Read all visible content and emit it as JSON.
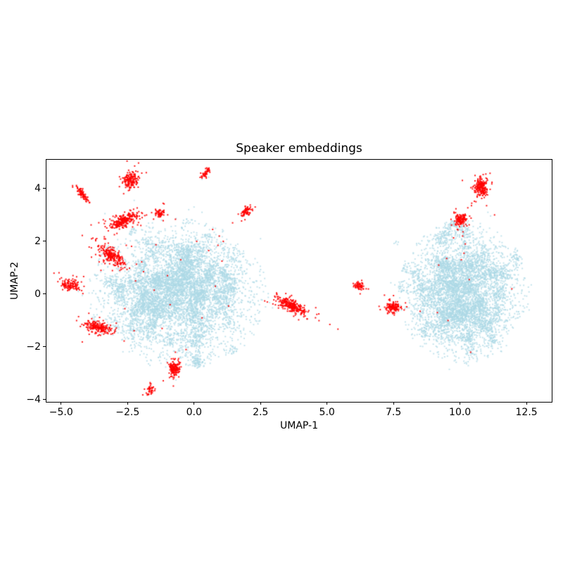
{
  "title": "Speaker embeddings",
  "axes": {
    "xlabel": "UMAP-1",
    "ylabel": "UMAP-2",
    "xlim": [
      -5.55,
      13.45
    ],
    "ylim": [
      -4.08,
      5.09
    ],
    "xticks": [
      -5.0,
      -2.5,
      0.0,
      2.5,
      5.0,
      7.5,
      10.0,
      12.5
    ],
    "xtick_labels": [
      "−5.0",
      "−2.5",
      "0.0",
      "2.5",
      "5.0",
      "7.5",
      "10.0",
      "12.5"
    ],
    "yticks": [
      4,
      2,
      0,
      -2,
      -4
    ],
    "ytick_labels": [
      "4",
      "2",
      "0",
      "−2",
      "−4"
    ]
  },
  "colors": {
    "background": "#ffffff",
    "base_points": "#add8e6",
    "highlight_points": "#ff0000",
    "spine": "#000000",
    "text": "#000000"
  },
  "chart_data": {
    "type": "scatter",
    "title": "Speaker embeddings",
    "xlabel": "UMAP-1",
    "ylabel": "UMAP-2",
    "xlim": [
      -5.55,
      13.45
    ],
    "ylim": [
      -4.08,
      5.09
    ],
    "grid": false,
    "legend": null,
    "marker_px": 2,
    "series": [
      {
        "name": "all-speaker-embeddings",
        "color": "#add8e6",
        "alpha": 0.7,
        "clusters": [
          {
            "label": "left-cloud",
            "cx": -0.6,
            "cy": 0.0,
            "sx": 1.45,
            "sy": 1.22,
            "n": 6800,
            "clip": 2.35,
            "subcenters": 120,
            "jitter": 0.14,
            "p_sub": 0.55
          },
          {
            "label": "right-cloud",
            "cx": 10.15,
            "cy": 0.05,
            "sx": 1.05,
            "sy": 1.18,
            "n": 5600,
            "clip": 2.35,
            "subcenters": 100,
            "jitter": 0.14,
            "p_sub": 0.55
          }
        ],
        "outliers": [
          [
            0.55,
            4.43
          ],
          [
            0.3,
            4.35
          ],
          [
            -2.25,
            3.55
          ],
          [
            -3.35,
            3.05
          ],
          [
            1.86,
            1.63
          ],
          [
            2.5,
            2.1
          ],
          [
            2.84,
            -0.32
          ],
          [
            2.95,
            -0.52
          ],
          [
            0.0,
            3.3
          ],
          [
            0.3,
            3.1
          ],
          [
            -0.2,
            3.2
          ],
          [
            -0.68,
            -3.25
          ],
          [
            -4.35,
            0.1
          ],
          [
            -4.2,
            -0.05
          ],
          [
            7.58,
            1.95
          ],
          [
            7.65,
            1.88
          ],
          [
            7.52,
            1.92
          ],
          [
            7.6,
            2.0
          ],
          [
            7.68,
            1.97
          ],
          [
            7.4,
            0.43
          ],
          [
            7.55,
            0.35
          ],
          [
            7.7,
            0.3
          ],
          [
            7.5,
            -0.3
          ],
          [
            7.62,
            -0.68
          ],
          [
            7.75,
            -0.42
          ],
          [
            11.15,
            2.96
          ],
          [
            11.05,
            3.1
          ],
          [
            12.68,
            0.35
          ],
          [
            12.6,
            -0.6
          ],
          [
            9.6,
            -2.85
          ]
        ]
      },
      {
        "name": "highlighted-speaker-clusters",
        "color": "#ff0000",
        "alpha": 0.9,
        "clusters": [
          {
            "cx": -4.65,
            "cy": 0.35,
            "n": 110,
            "smaj": 0.2,
            "smin": 0.09,
            "angle": -15,
            "halo_n": 12,
            "halo_scale": 2.2
          },
          {
            "cx": -4.2,
            "cy": 3.76,
            "n": 80,
            "smaj": 0.17,
            "smin": 0.06,
            "angle": -50,
            "halo_n": 8,
            "halo_scale": 2.0
          },
          {
            "cx": -2.4,
            "cy": 4.33,
            "n": 150,
            "smaj": 0.16,
            "smin": 0.13,
            "angle": 60,
            "halo_n": 15,
            "halo_scale": 2.0
          },
          {
            "cx": 0.45,
            "cy": 4.6,
            "n": 45,
            "smaj": 0.12,
            "smin": 0.05,
            "angle": 55,
            "halo_n": 4,
            "halo_scale": 1.8
          },
          {
            "cx": -2.62,
            "cy": 2.8,
            "n": 240,
            "smaj": 0.27,
            "smin": 0.11,
            "angle": 25,
            "halo_n": 30,
            "halo_scale": 2.4
          },
          {
            "cx": -1.27,
            "cy": 3.05,
            "n": 55,
            "smaj": 0.1,
            "smin": 0.08,
            "angle": 0,
            "halo_n": 6,
            "halo_scale": 2.2
          },
          {
            "cx": -3.08,
            "cy": 1.45,
            "n": 200,
            "smaj": 0.24,
            "smin": 0.12,
            "angle": -35,
            "halo_n": 40,
            "halo_scale": 2.6
          },
          {
            "cx": -3.62,
            "cy": -1.25,
            "n": 190,
            "smaj": 0.26,
            "smin": 0.1,
            "angle": -12,
            "halo_n": 25,
            "halo_scale": 2.2
          },
          {
            "cx": -0.73,
            "cy": -2.82,
            "n": 140,
            "smaj": 0.15,
            "smin": 0.1,
            "angle": 75,
            "halo_n": 18,
            "halo_scale": 2.2
          },
          {
            "cx": -1.66,
            "cy": -3.62,
            "n": 40,
            "smaj": 0.1,
            "smin": 0.06,
            "angle": 70,
            "halo_n": 4,
            "halo_scale": 1.8
          },
          {
            "cx": 1.95,
            "cy": 3.12,
            "n": 65,
            "smaj": 0.13,
            "smin": 0.06,
            "angle": 45,
            "halo_n": 8,
            "halo_scale": 2.0
          },
          {
            "cx": 3.66,
            "cy": -0.44,
            "n": 260,
            "smaj": 0.3,
            "smin": 0.1,
            "angle": -22,
            "halo_n": 30,
            "halo_scale": 2.0
          },
          {
            "cx": 6.22,
            "cy": 0.3,
            "n": 55,
            "smaj": 0.12,
            "smin": 0.07,
            "angle": -10,
            "halo_n": 6,
            "halo_scale": 1.8
          },
          {
            "cx": 7.47,
            "cy": -0.51,
            "n": 120,
            "smaj": 0.14,
            "smin": 0.1,
            "angle": 0,
            "halo_n": 14,
            "halo_scale": 2.2
          },
          {
            "cx": 10.03,
            "cy": 2.82,
            "n": 120,
            "smaj": 0.14,
            "smin": 0.11,
            "angle": 80,
            "halo_n": 15,
            "halo_scale": 2.2
          },
          {
            "cx": 10.78,
            "cy": 4.02,
            "n": 190,
            "smaj": 0.18,
            "smin": 0.13,
            "angle": 70,
            "halo_n": 20,
            "halo_scale": 2.0
          }
        ],
        "singles": [
          [
            -1.9,
            0.85
          ],
          [
            -2.2,
            0.5
          ],
          [
            -1.5,
            0.15
          ],
          [
            -0.9,
            -0.4
          ],
          [
            -2.6,
            -0.55
          ],
          [
            -1.2,
            -1.3
          ],
          [
            0.3,
            -0.9
          ],
          [
            0.8,
            0.3
          ],
          [
            1.3,
            -0.45
          ],
          [
            -0.5,
            1.3
          ],
          [
            0.1,
            2.0
          ],
          [
            -0.3,
            -2.1
          ],
          [
            -2.9,
            2.3
          ],
          [
            -2.0,
            2.6
          ],
          [
            -3.5,
            0.9
          ],
          [
            -2.75,
            1.0
          ],
          [
            -2.35,
            1.81
          ],
          [
            -1.43,
            1.87
          ],
          [
            -1.0,
            0.7
          ],
          [
            -0.85,
            -2.45
          ],
          [
            -0.6,
            -2.5
          ],
          [
            -0.55,
            -2.65
          ],
          [
            -1.0,
            -2.6
          ],
          [
            -0.7,
            -2.2
          ],
          [
            -1.62,
            -3.4
          ],
          [
            0.7,
            2.45
          ],
          [
            0.95,
            2.2
          ],
          [
            1.1,
            2.0
          ],
          [
            0.9,
            1.85
          ],
          [
            1.45,
            2.7
          ],
          [
            0.55,
            1.65
          ],
          [
            1.05,
            1.25
          ],
          [
            2.3,
            3.3
          ],
          [
            0.3,
            4.4
          ],
          [
            -2.1,
            4.05
          ],
          [
            6.0,
            0.28
          ],
          [
            10.1,
            2.2
          ],
          [
            10.2,
            1.9
          ],
          [
            10.15,
            1.55
          ],
          [
            10.05,
            1.3
          ],
          [
            9.5,
            1.35
          ],
          [
            9.2,
            1.1
          ],
          [
            10.35,
            0.55
          ],
          [
            9.9,
            2.45
          ],
          [
            10.6,
            3.5
          ],
          [
            11.0,
            3.35
          ],
          [
            11.3,
            3.0
          ],
          [
            8.5,
            -0.65
          ],
          [
            9.15,
            -0.7
          ],
          [
            9.55,
            -1.0
          ],
          [
            11.95,
            0.2
          ],
          [
            10.4,
            -2.2
          ],
          [
            8.0,
            -0.48
          ],
          [
            7.9,
            -0.6
          ]
        ]
      }
    ]
  }
}
